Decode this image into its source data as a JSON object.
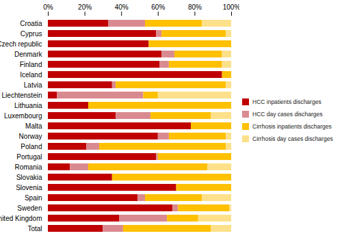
{
  "chart_data": {
    "type": "bar",
    "orientation": "horizontal",
    "stacked": true,
    "grid": false,
    "legend": "right",
    "categories": [
      "Croatia",
      "Cyprus",
      "Czech republic",
      "Denmark",
      "Finland",
      "Iceland",
      "Latvia",
      "Liechtenstein",
      "Lithuania",
      "Luxembourg",
      "Malta",
      "Norway",
      "Poland",
      "Portugal",
      "Romania",
      "Slovakia",
      "Slovenia",
      "Spain",
      "Sweden",
      "United Kingdom",
      "Total"
    ],
    "series": [
      {
        "name": "HCC inpatients discharges",
        "color": "#c00000",
        "values": [
          33,
          59,
          55,
          62,
          61,
          95,
          35,
          5,
          22,
          37,
          78,
          60,
          21,
          59,
          12,
          35,
          70,
          49,
          68,
          39,
          30
        ]
      },
      {
        "name": "HCC day cases discharges",
        "color": "#d98a90",
        "values": [
          20,
          3,
          0,
          7,
          5,
          0,
          2,
          47,
          0,
          19,
          0,
          6,
          7,
          1,
          10,
          0,
          0,
          4,
          3,
          26,
          11
        ]
      },
      {
        "name": "Cirrhosis inpatients discharges",
        "color": "#ffc000",
        "values": [
          31,
          35,
          45,
          26,
          29,
          5,
          60,
          8,
          78,
          33,
          22,
          31,
          69,
          40,
          65,
          65,
          30,
          31,
          28,
          17,
          48
        ]
      },
      {
        "name": "Cirrhosis day cases discharges",
        "color": "#fde08a",
        "values": [
          16,
          3,
          0,
          5,
          5,
          0,
          3,
          40,
          0,
          11,
          0,
          3,
          3,
          0,
          13,
          0,
          0,
          16,
          1,
          18,
          11
        ]
      }
    ],
    "xlim": [
      0,
      100
    ],
    "xticks": [
      {
        "value": 0,
        "label": "0%"
      },
      {
        "value": 20,
        "label": "20%"
      },
      {
        "value": 40,
        "label": "40%"
      },
      {
        "value": 60,
        "label": "60%"
      },
      {
        "value": 80,
        "label": "80%"
      },
      {
        "value": 100,
        "label": "100%"
      }
    ]
  }
}
